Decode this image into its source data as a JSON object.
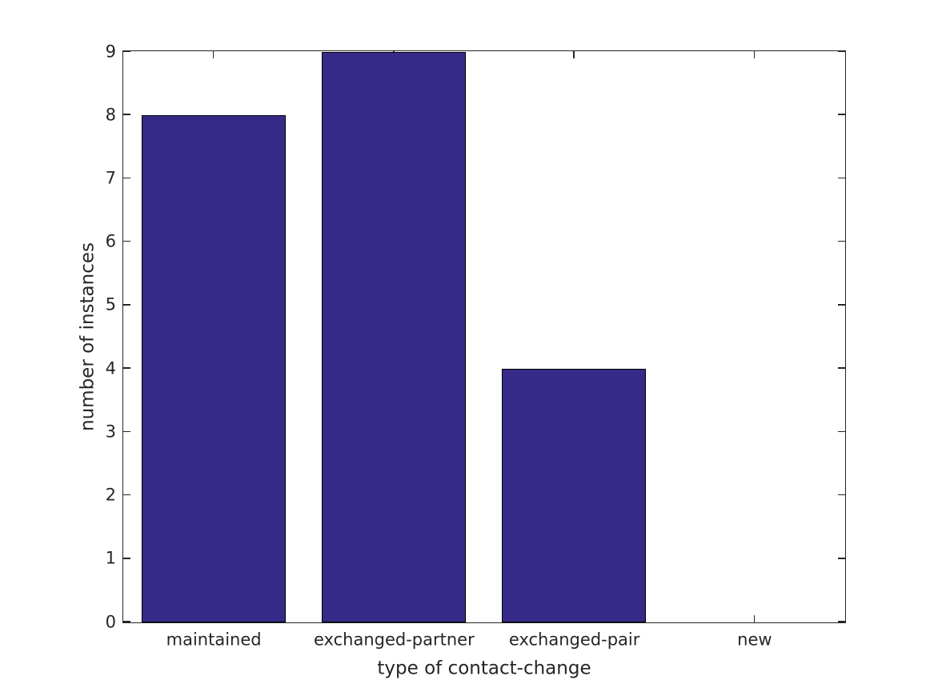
{
  "figure": {
    "background_color": "#ffffff"
  },
  "chart_data": {
    "type": "bar",
    "categories": [
      "maintained",
      "exchanged-partner",
      "exchanged-pair",
      "new"
    ],
    "values": [
      8,
      9,
      4,
      0
    ],
    "title": "",
    "xlabel": "type of contact-change",
    "ylabel": "number of instances",
    "ylim": [
      0,
      9
    ],
    "yticks": [
      0,
      1,
      2,
      3,
      4,
      5,
      6,
      7,
      8,
      9
    ],
    "bar_color": "#352a87",
    "bar_edge_color": "#000000",
    "axis_color": "#262626",
    "bar_width_fraction": 0.8,
    "grid": false,
    "legend": null
  }
}
